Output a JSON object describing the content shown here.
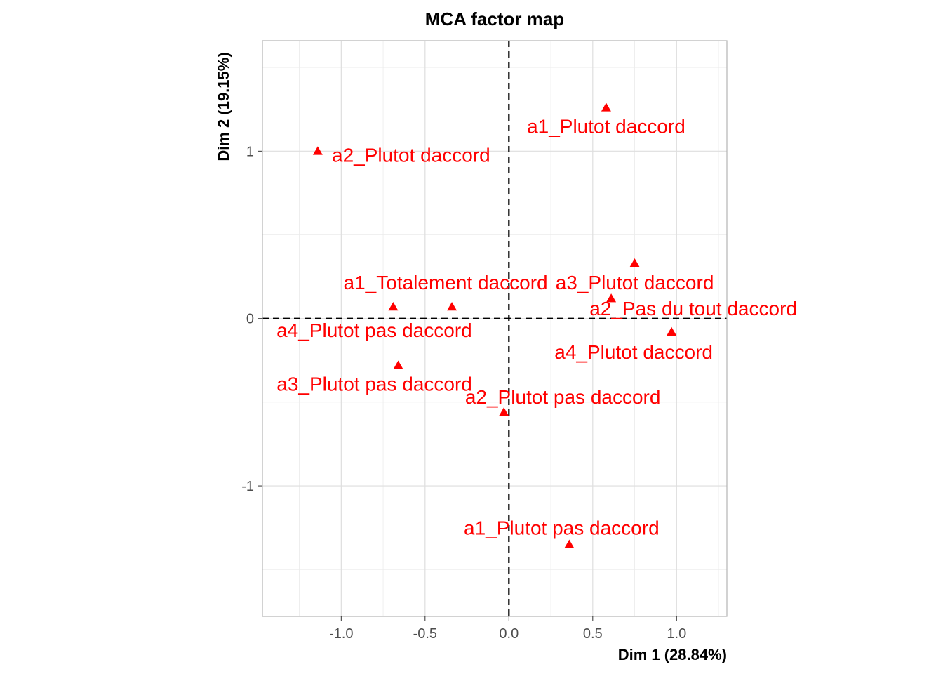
{
  "chart_data": {
    "type": "scatter",
    "title": "MCA factor map",
    "xlabel": "Dim 1 (28.84%)",
    "ylabel": "Dim 2 (19.15%)",
    "xlim": [
      -1.47,
      1.3
    ],
    "ylim": [
      -1.78,
      1.66
    ],
    "x_ticks": [
      -1.0,
      -0.5,
      0.0,
      0.5,
      1.0
    ],
    "x_tick_labels": [
      "-1.0",
      "-0.5",
      "0.0",
      "0.5",
      "1.0"
    ],
    "y_ticks": [
      -1,
      0,
      1
    ],
    "y_tick_labels": [
      "-1",
      "0",
      "1"
    ],
    "grid": true,
    "reference_lines": {
      "x": 0,
      "y": 0,
      "style": "dashed"
    },
    "marker": "triangle",
    "color": "#ff0000",
    "points": [
      {
        "label": "a1_Plutot daccord",
        "x": 0.58,
        "y": 1.26
      },
      {
        "label": "a2_Plutot daccord",
        "x": -1.14,
        "y": 1.0
      },
      {
        "label": "a3_Plutot daccord",
        "x": 0.75,
        "y": 0.33
      },
      {
        "label": "a1_Totalement daccord",
        "x": -0.34,
        "y": 0.07
      },
      {
        "label": "a4_Plutot pas daccord",
        "x": -0.69,
        "y": 0.07
      },
      {
        "label": "a2_Pas du tout daccord",
        "x": 0.61,
        "y": 0.12
      },
      {
        "label": "a4_Plutot daccord",
        "x": 0.97,
        "y": -0.08
      },
      {
        "label": "a3_Plutot pas daccord",
        "x": -0.66,
        "y": -0.28
      },
      {
        "label": "a2_Plutot pas daccord",
        "x": -0.03,
        "y": -0.56
      },
      {
        "label": "a1_Plutot pas daccord",
        "x": 0.36,
        "y": -1.35
      }
    ]
  }
}
